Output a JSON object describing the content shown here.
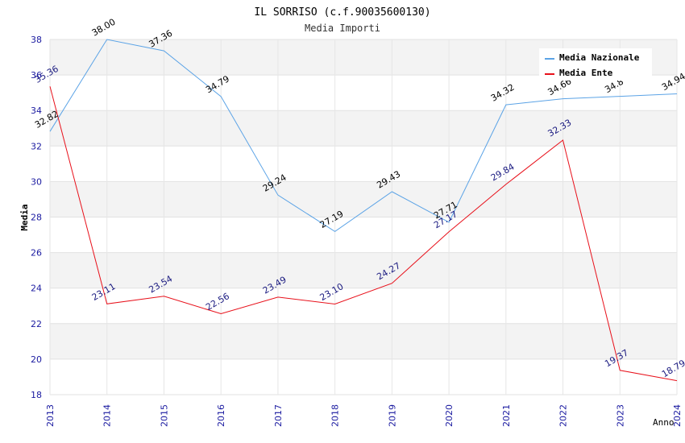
{
  "chart_data": {
    "type": "line",
    "title": "IL SORRISO (c.f.90035600130)",
    "subtitle": "Media Importi",
    "xlabel": "Anno",
    "ylabel": "Media",
    "ylim": [
      18,
      38
    ],
    "yticks": [
      "18",
      "20",
      "22",
      "24",
      "26",
      "28",
      "30",
      "32",
      "34",
      "36",
      "38"
    ],
    "categories": [
      "2013",
      "2014",
      "2015",
      "2016",
      "2017",
      "2018",
      "2019",
      "2020",
      "2021",
      "2022",
      "2023",
      "2024"
    ],
    "grid": true,
    "legend_position": "top-right",
    "series": [
      {
        "name": "Media Nazionale",
        "color": "#5ba3e6",
        "label_color": "#000000",
        "values": [
          32.82,
          38.0,
          37.36,
          34.79,
          29.24,
          27.19,
          29.43,
          27.71,
          34.32,
          34.66,
          34.8,
          34.94
        ],
        "labels": [
          "32.82",
          "38.00",
          "37.36",
          "34.79",
          "29.24",
          "27.19",
          "29.43",
          "27.71",
          "34.32",
          "34.66",
          "34.8",
          "34.94"
        ]
      },
      {
        "name": "Media Ente",
        "color": "#e8101a",
        "label_color": "#1a1a80",
        "values": [
          35.36,
          23.11,
          23.54,
          22.56,
          23.49,
          23.1,
          24.27,
          27.17,
          29.84,
          32.33,
          19.37,
          18.79
        ],
        "labels": [
          "35.36",
          "23.11",
          "23.54",
          "22.56",
          "23.49",
          "23.10",
          "24.27",
          "27.17",
          "29.84",
          "32.33",
          "19.37",
          "18.79"
        ]
      }
    ]
  }
}
